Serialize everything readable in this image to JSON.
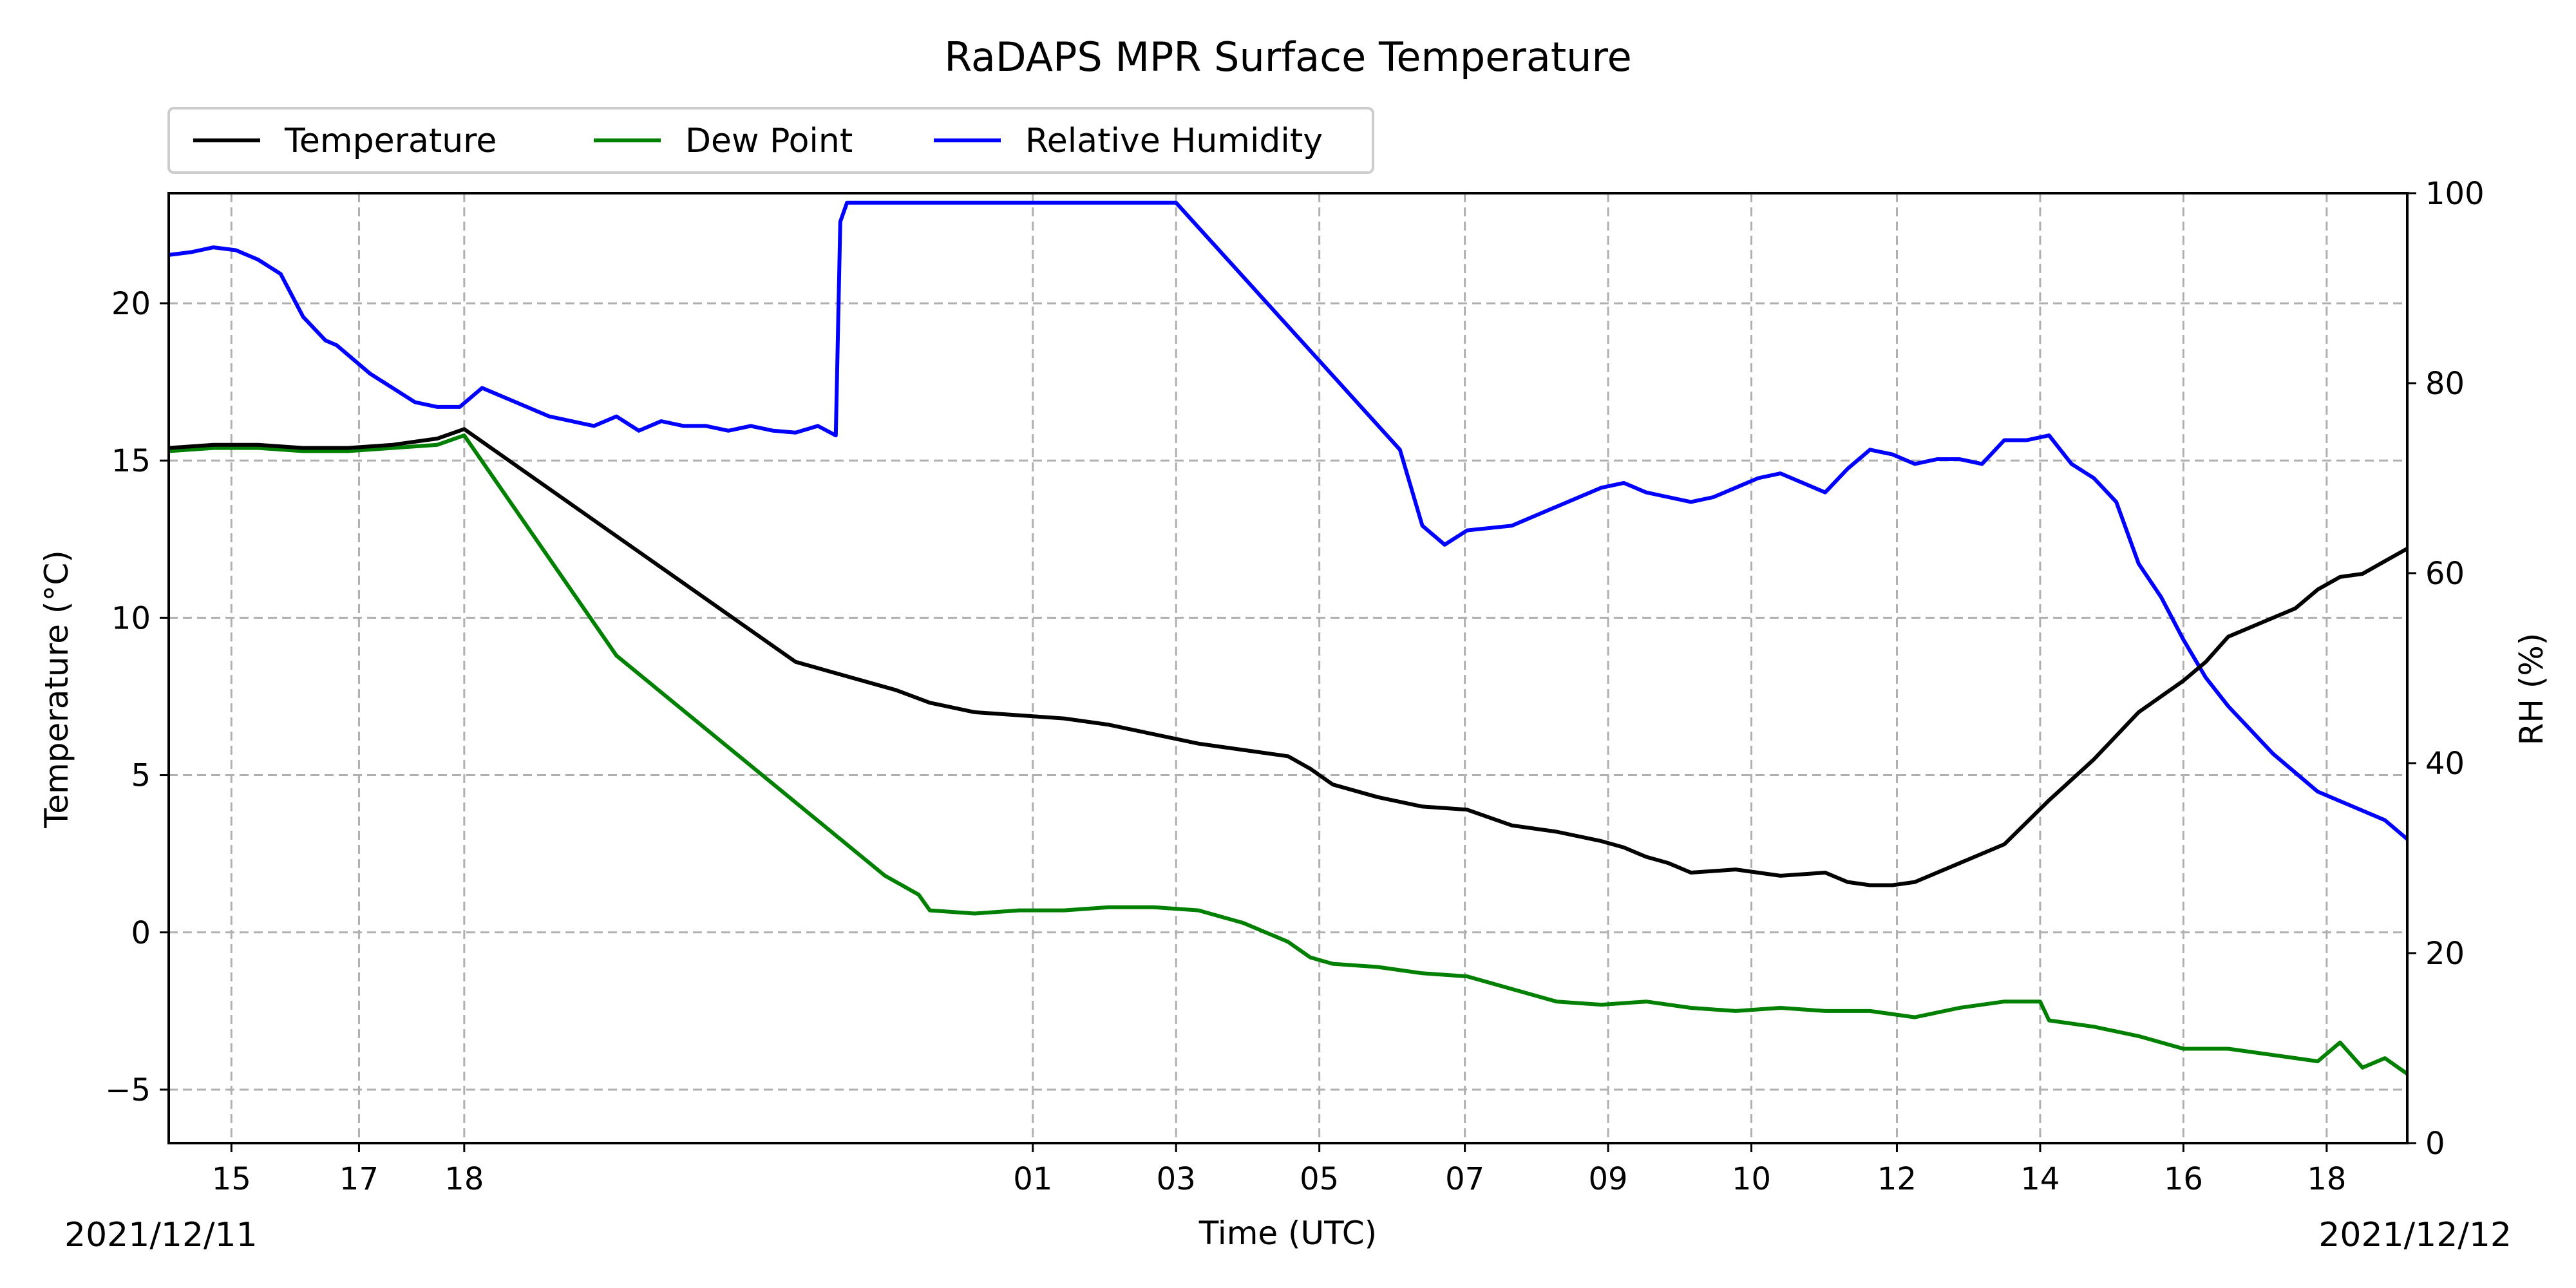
{
  "chart_data": {
    "type": "line",
    "title": "RaDAPS MPR Surface Temperature",
    "xlabel": "Time (UTC)",
    "ylabel_left": "Temperature ($^\\circ$C)",
    "ylabel_left_display": "Temperature (°C)",
    "ylabel_right": "RH (%)",
    "ylim_left": [
      -6.7,
      23.5
    ],
    "ylim_right": [
      0,
      100
    ],
    "yticks_left": [
      -5,
      0,
      5,
      10,
      15,
      20
    ],
    "yticks_right": [
      0,
      20,
      40,
      60,
      80,
      100
    ],
    "xticks": [
      "15",
      "17",
      "18",
      "01",
      "03",
      "05",
      "07",
      "09",
      "10",
      "12",
      "14",
      "16",
      "18"
    ],
    "x_unit": "index along the non-uniform time axis (0 = left edge, 100 = right edge)",
    "xticks_pos": [
      2.8,
      8.5,
      13.2,
      38.6,
      45.0,
      51.4,
      57.9,
      64.3,
      70.7,
      77.2,
      83.6,
      90.0,
      96.4
    ],
    "xlim": [
      0,
      100
    ],
    "date_start": "2021/12/11",
    "date_end": "2021/12/12",
    "grid": true,
    "legend": "top-left, above plot, horizontal",
    "series": [
      {
        "name": "Temperature",
        "color": "#000000",
        "axis": "left",
        "x": [
          0,
          2,
          4,
          6,
          8,
          10,
          12,
          13.2,
          20,
          28,
          32,
          32.5,
          34,
          36,
          38,
          40,
          42,
          44,
          46,
          48,
          50,
          51,
          52,
          54,
          56,
          58,
          60,
          62,
          64,
          65,
          66,
          67,
          68,
          70,
          72,
          74,
          75,
          76,
          77,
          78,
          80,
          82,
          84,
          86,
          88,
          89,
          90,
          91,
          92,
          93,
          94,
          95,
          96,
          97,
          98,
          99,
          100
        ],
        "y": [
          15.4,
          15.5,
          15.5,
          15.4,
          15.4,
          15.5,
          15.7,
          16.0,
          12.6,
          8.6,
          7.8,
          7.7,
          7.3,
          7.0,
          6.9,
          6.8,
          6.6,
          6.3,
          6.0,
          5.8,
          5.6,
          5.2,
          4.7,
          4.3,
          4.0,
          3.9,
          3.4,
          3.2,
          2.9,
          2.7,
          2.4,
          2.2,
          1.9,
          2.0,
          1.8,
          1.9,
          1.6,
          1.5,
          1.5,
          1.6,
          2.2,
          2.8,
          4.2,
          5.5,
          7.0,
          7.5,
          8.0,
          8.6,
          9.4,
          9.7,
          10.0,
          10.3,
          10.9,
          11.3,
          11.4,
          11.8,
          12.2
        ]
      },
      {
        "name": "Dew Point",
        "color": "#008000",
        "axis": "left",
        "x": [
          0,
          2,
          4,
          6,
          8,
          10,
          12,
          13.2,
          20,
          32,
          32.5,
          33.5,
          34,
          36,
          38,
          40,
          42,
          44,
          46,
          48,
          50,
          51,
          52,
          54,
          56,
          58,
          60,
          62,
          64,
          66,
          68,
          70,
          72,
          74,
          76,
          78,
          80,
          82,
          83.6,
          84,
          86,
          88,
          90,
          92,
          94,
          96,
          97,
          98,
          99,
          100
        ],
        "y": [
          15.3,
          15.4,
          15.4,
          15.3,
          15.3,
          15.4,
          15.5,
          15.8,
          8.8,
          1.8,
          1.6,
          1.2,
          0.7,
          0.6,
          0.7,
          0.7,
          0.8,
          0.8,
          0.7,
          0.3,
          -0.3,
          -0.8,
          -1.0,
          -1.1,
          -1.3,
          -1.4,
          -1.8,
          -2.2,
          -2.3,
          -2.2,
          -2.4,
          -2.5,
          -2.4,
          -2.5,
          -2.5,
          -2.7,
          -2.4,
          -2.2,
          -2.2,
          -2.8,
          -3.0,
          -3.3,
          -3.7,
          -3.7,
          -3.9,
          -4.1,
          -3.5,
          -4.3,
          -4.0,
          -4.5
        ]
      },
      {
        "name": "Relative Humidity",
        "color": "#0000ff",
        "axis": "right",
        "x": [
          0,
          1,
          2,
          3,
          4,
          5,
          6,
          7,
          7.5,
          8,
          9,
          10,
          11,
          12,
          13,
          14,
          15,
          16,
          17,
          18,
          19,
          20,
          21,
          22,
          23,
          24,
          25,
          26,
          27,
          28,
          29,
          29.8,
          30,
          30.3,
          31,
          35,
          40,
          43,
          44,
          45,
          50,
          55,
          56,
          57,
          58,
          60,
          62,
          64,
          65,
          66,
          67,
          68,
          69,
          70,
          71,
          72,
          73,
          74,
          75,
          76,
          77,
          78,
          79,
          80,
          81,
          82,
          83,
          84,
          85,
          86,
          87,
          88,
          89,
          90,
          91,
          92,
          93,
          94,
          95,
          96,
          97,
          98,
          99,
          100
        ],
        "y": [
          93.5,
          93.8,
          94.3,
          94.0,
          93.0,
          91.5,
          87.0,
          84.5,
          84.0,
          83.0,
          81.0,
          79.5,
          78.0,
          77.5,
          77.5,
          79.5,
          78.5,
          77.5,
          76.5,
          76.0,
          75.5,
          76.5,
          75.0,
          76.0,
          75.5,
          75.5,
          75.0,
          75.5,
          75.0,
          74.8,
          75.5,
          74.5,
          97.0,
          99.0,
          99.0,
          99.0,
          99.0,
          99.0,
          99.0,
          99.0,
          86.0,
          73.0,
          65.0,
          63.0,
          64.5,
          65.0,
          67.0,
          69.0,
          69.5,
          68.5,
          68.0,
          67.5,
          68.0,
          69.0,
          70.0,
          70.5,
          69.5,
          68.5,
          71.0,
          73.0,
          72.5,
          71.5,
          72.0,
          72.0,
          71.5,
          74.0,
          74.0,
          74.5,
          71.5,
          70.0,
          67.5,
          61.0,
          57.5,
          53.0,
          49.0,
          46.0,
          43.5,
          41.0,
          39.0,
          37.0,
          36.0,
          35.0,
          34.0,
          32.0
        ]
      }
    ]
  }
}
